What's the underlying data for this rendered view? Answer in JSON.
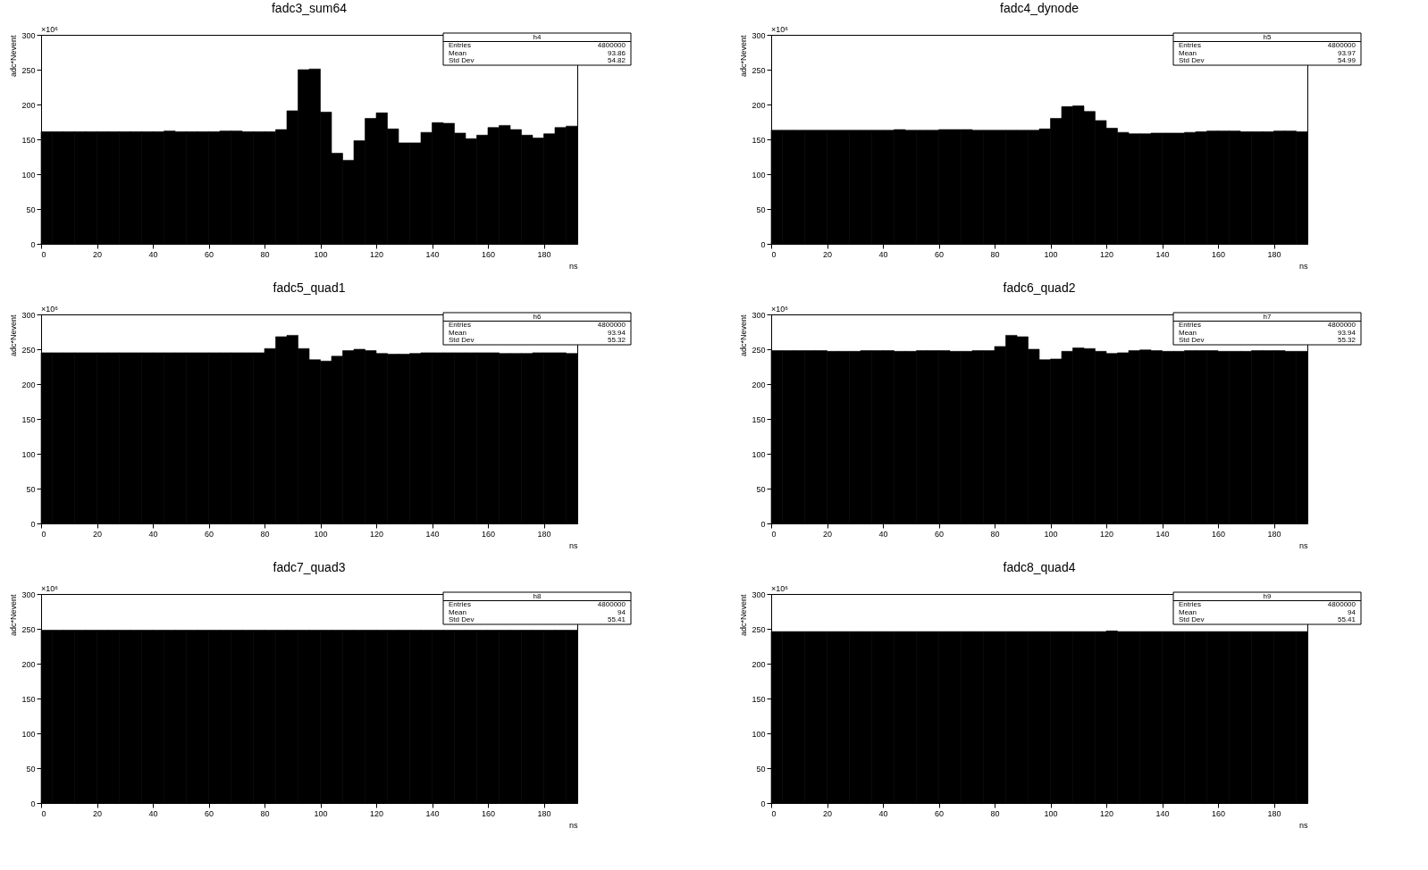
{
  "chart_data": [
    {
      "type": "histogram",
      "title": "fadc3_sum64",
      "xlabel": "ns",
      "ylabel": "adc*Nevent",
      "color": "#000000",
      "xlim": [
        0,
        192
      ],
      "xticks": [
        0,
        20,
        40,
        60,
        80,
        100,
        120,
        140,
        160,
        180
      ],
      "ylim": [
        0,
        300
      ],
      "yticks": [
        0,
        50,
        100,
        150,
        200,
        250,
        300
      ],
      "grid": false,
      "annotations": [
        "×10⁶",
        "h4",
        "Entries",
        "4800000",
        "Mean",
        "93.86",
        "Std Dev",
        "54.82"
      ],
      "bins": [
        0,
        4,
        8,
        12,
        16,
        20,
        24,
        28,
        32,
        36,
        40,
        44,
        48,
        52,
        56,
        60,
        64,
        68,
        72,
        76,
        80,
        84,
        88,
        92,
        96,
        100,
        104,
        108,
        112,
        116,
        120,
        124,
        128,
        132,
        136,
        140,
        144,
        148,
        152,
        156,
        160,
        164,
        168,
        172,
        176,
        180,
        184,
        188,
        192
      ],
      "values": [
        161,
        161,
        161,
        161,
        161,
        161,
        161,
        161,
        161,
        161,
        161,
        162,
        161,
        161,
        161,
        161,
        162,
        162,
        161,
        161,
        161,
        164,
        191,
        250,
        251,
        189,
        130,
        120,
        148,
        180,
        188,
        165,
        145,
        145,
        160,
        174,
        173,
        159,
        151,
        156,
        167,
        170,
        164,
        156,
        152,
        158,
        167,
        169
      ]
    },
    {
      "type": "histogram",
      "title": "fadc4_dynode",
      "xlabel": "ns",
      "ylabel": "adc*Nevent",
      "color": "#000000",
      "xlim": [
        0,
        192
      ],
      "xticks": [
        0,
        20,
        40,
        60,
        80,
        100,
        120,
        140,
        160,
        180
      ],
      "ylim": [
        0,
        300
      ],
      "yticks": [
        0,
        50,
        100,
        150,
        200,
        250,
        300
      ],
      "grid": false,
      "annotations": [
        "×10⁶",
        "h5",
        "Entries",
        "4800000",
        "Mean",
        "93.97",
        "Std Dev",
        "54.99"
      ],
      "bins": [
        0,
        4,
        8,
        12,
        16,
        20,
        24,
        28,
        32,
        36,
        40,
        44,
        48,
        52,
        56,
        60,
        64,
        68,
        72,
        76,
        80,
        84,
        88,
        92,
        96,
        100,
        104,
        108,
        112,
        116,
        120,
        124,
        128,
        132,
        136,
        140,
        144,
        148,
        152,
        156,
        160,
        164,
        168,
        172,
        176,
        180,
        184,
        188,
        192
      ],
      "values": [
        163,
        163,
        163,
        163,
        163,
        163,
        163,
        163,
        163,
        163,
        163,
        164,
        163,
        163,
        163,
        164,
        164,
        164,
        163,
        163,
        163,
        163,
        163,
        163,
        165,
        180,
        197,
        198,
        190,
        177,
        166,
        160,
        158,
        158,
        159,
        159,
        159,
        160,
        161,
        162,
        162,
        162,
        161,
        161,
        161,
        162,
        162,
        161
      ]
    },
    {
      "type": "histogram",
      "title": "fadc5_quad1",
      "xlabel": "ns",
      "ylabel": "adc*Nevent",
      "color": "#000000",
      "xlim": [
        0,
        192
      ],
      "xticks": [
        0,
        20,
        40,
        60,
        80,
        100,
        120,
        140,
        160,
        180
      ],
      "ylim": [
        0,
        300
      ],
      "yticks": [
        0,
        50,
        100,
        150,
        200,
        250,
        300
      ],
      "grid": false,
      "annotations": [
        "×10⁶",
        "h6",
        "Entries",
        "4800000",
        "Mean",
        "93.94",
        "Std Dev",
        "55.32"
      ],
      "bins": [
        0,
        4,
        8,
        12,
        16,
        20,
        24,
        28,
        32,
        36,
        40,
        44,
        48,
        52,
        56,
        60,
        64,
        68,
        72,
        76,
        80,
        84,
        88,
        92,
        96,
        100,
        104,
        108,
        112,
        116,
        120,
        124,
        128,
        132,
        136,
        140,
        144,
        148,
        152,
        156,
        160,
        164,
        168,
        172,
        176,
        180,
        184,
        188,
        192
      ],
      "values": [
        245,
        245,
        245,
        245,
        245,
        245,
        245,
        245,
        245,
        245,
        245,
        245,
        245,
        245,
        245,
        245,
        245,
        245,
        245,
        245,
        251,
        268,
        270,
        251,
        235,
        233,
        240,
        248,
        250,
        248,
        244,
        243,
        243,
        244,
        245,
        245,
        245,
        245,
        245,
        245,
        245,
        244,
        244,
        244,
        245,
        245,
        245,
        244
      ]
    },
    {
      "type": "histogram",
      "title": "fadc6_quad2",
      "xlabel": "ns",
      "ylabel": "adc*Nevent",
      "color": "#000000",
      "xlim": [
        0,
        192
      ],
      "xticks": [
        0,
        20,
        40,
        60,
        80,
        100,
        120,
        140,
        160,
        180
      ],
      "ylim": [
        0,
        300
      ],
      "yticks": [
        0,
        50,
        100,
        150,
        200,
        250,
        300
      ],
      "grid": false,
      "annotations": [
        "×10⁶",
        "h7",
        "Entries",
        "4800000",
        "Mean",
        "93.94",
        "Std Dev",
        "55.32"
      ],
      "bins": [
        0,
        4,
        8,
        12,
        16,
        20,
        24,
        28,
        32,
        36,
        40,
        44,
        48,
        52,
        56,
        60,
        64,
        68,
        72,
        76,
        80,
        84,
        88,
        92,
        96,
        100,
        104,
        108,
        112,
        116,
        120,
        124,
        128,
        132,
        136,
        140,
        144,
        148,
        152,
        156,
        160,
        164,
        168,
        172,
        176,
        180,
        184,
        188,
        192
      ],
      "values": [
        248,
        248,
        248,
        248,
        248,
        247,
        247,
        247,
        248,
        248,
        248,
        247,
        247,
        248,
        248,
        248,
        247,
        247,
        248,
        248,
        254,
        270,
        268,
        250,
        235,
        236,
        247,
        252,
        251,
        247,
        244,
        245,
        248,
        249,
        248,
        247,
        247,
        248,
        248,
        248,
        247,
        247,
        247,
        248,
        248,
        248,
        247,
        247
      ]
    },
    {
      "type": "histogram",
      "title": "fadc7_quad3",
      "xlabel": "ns",
      "ylabel": "adc*Nevent",
      "color": "#000000",
      "xlim": [
        0,
        192
      ],
      "xticks": [
        0,
        20,
        40,
        60,
        80,
        100,
        120,
        140,
        160,
        180
      ],
      "ylim": [
        0,
        300
      ],
      "yticks": [
        0,
        50,
        100,
        150,
        200,
        250,
        300
      ],
      "grid": false,
      "annotations": [
        "×10⁶",
        "h8",
        "Entries",
        "4800000",
        "Mean",
        "94",
        "Std Dev",
        "55.41"
      ],
      "bins": [
        0,
        4,
        8,
        12,
        16,
        20,
        24,
        28,
        32,
        36,
        40,
        44,
        48,
        52,
        56,
        60,
        64,
        68,
        72,
        76,
        80,
        84,
        88,
        92,
        96,
        100,
        104,
        108,
        112,
        116,
        120,
        124,
        128,
        132,
        136,
        140,
        144,
        148,
        152,
        156,
        160,
        164,
        168,
        172,
        176,
        180,
        184,
        188,
        192
      ],
      "values": [
        248,
        248,
        248,
        248,
        248,
        248,
        248,
        248,
        248,
        248,
        248,
        248,
        248,
        248,
        248,
        248,
        248,
        248,
        248,
        248,
        248,
        248,
        248,
        248,
        248,
        248,
        248,
        248,
        248,
        248,
        248,
        248,
        248,
        248,
        248,
        248,
        248,
        248,
        248,
        248,
        248,
        248,
        248,
        248,
        248,
        248,
        248,
        248
      ]
    },
    {
      "type": "histogram",
      "title": "fadc8_quad4",
      "xlabel": "ns",
      "ylabel": "adc*Nevent",
      "color": "#000000",
      "xlim": [
        0,
        192
      ],
      "xticks": [
        0,
        20,
        40,
        60,
        80,
        100,
        120,
        140,
        160,
        180
      ],
      "ylim": [
        0,
        300
      ],
      "yticks": [
        0,
        50,
        100,
        150,
        200,
        250,
        300
      ],
      "grid": false,
      "annotations": [
        "×10⁶",
        "h9",
        "Entries",
        "4800000",
        "Mean",
        "94",
        "Std Dev",
        "55.41"
      ],
      "bins": [
        0,
        4,
        8,
        12,
        16,
        20,
        24,
        28,
        32,
        36,
        40,
        44,
        48,
        52,
        56,
        60,
        64,
        68,
        72,
        76,
        80,
        84,
        88,
        92,
        96,
        100,
        104,
        108,
        112,
        116,
        120,
        124,
        128,
        132,
        136,
        140,
        144,
        148,
        152,
        156,
        160,
        164,
        168,
        172,
        176,
        180,
        184,
        188,
        192
      ],
      "values": [
        246,
        246,
        246,
        246,
        246,
        246,
        246,
        246,
        246,
        246,
        246,
        246,
        246,
        246,
        246,
        246,
        246,
        246,
        246,
        246,
        246,
        246,
        246,
        246,
        246,
        246,
        246,
        246,
        246,
        246,
        247,
        246,
        246,
        246,
        246,
        246,
        246,
        246,
        246,
        246,
        246,
        246,
        246,
        246,
        246,
        246,
        246,
        246
      ]
    }
  ]
}
